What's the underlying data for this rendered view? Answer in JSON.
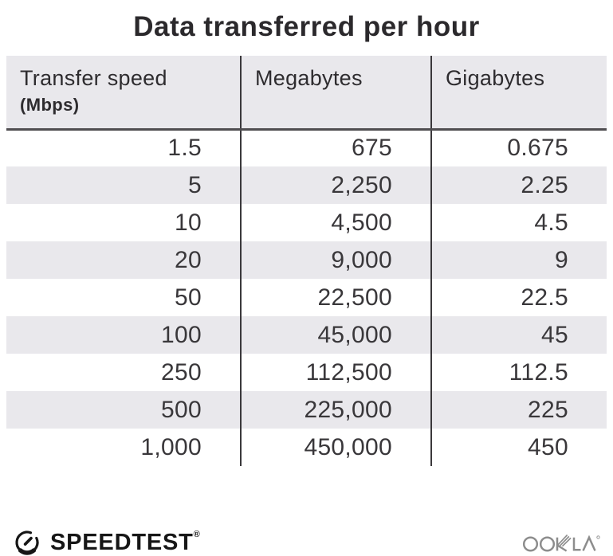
{
  "title": "Data transferred per hour",
  "table": {
    "columns": [
      {
        "label": "Transfer speed",
        "sublabel": "(Mbps)"
      },
      {
        "label": "Megabytes",
        "sublabel": ""
      },
      {
        "label": "Gigabytes",
        "sublabel": ""
      }
    ],
    "rows": [
      [
        "1.5",
        "675",
        "0.675"
      ],
      [
        "5",
        "2,250",
        "2.25"
      ],
      [
        "10",
        "4,500",
        "4.5"
      ],
      [
        "20",
        "9,000",
        "9"
      ],
      [
        "50",
        "22,500",
        "22.5"
      ],
      [
        "100",
        "45,000",
        "45"
      ],
      [
        "250",
        "112,500",
        "112.5"
      ],
      [
        "500",
        "225,000",
        "225"
      ],
      [
        "1,000",
        "450,000",
        "450"
      ]
    ]
  },
  "chart_data": {
    "type": "table",
    "title": "Data transferred per hour",
    "columns": [
      "Transfer speed (Mbps)",
      "Megabytes",
      "Gigabytes"
    ],
    "rows": [
      [
        1.5,
        675,
        0.675
      ],
      [
        5,
        2250,
        2.25
      ],
      [
        10,
        4500,
        4.5
      ],
      [
        20,
        9000,
        9
      ],
      [
        50,
        22500,
        22.5
      ],
      [
        100,
        45000,
        45
      ],
      [
        250,
        112500,
        112.5
      ],
      [
        500,
        225000,
        225
      ],
      [
        1000,
        450000,
        450
      ]
    ],
    "layout_hints": {
      "striped_rows": true,
      "value_alignment": "right",
      "column_dividers": true
    }
  },
  "footer": {
    "speedtest_label": "SPEEDTEST",
    "speedtest_trademark": "®",
    "ookla_label": "OOKLA"
  },
  "colors": {
    "stripe_bg": "#e9e8ec",
    "header_bg": "#e9e8ec",
    "divider": "#3a383b",
    "header_rule": "#4f4d50",
    "text_dark": "#2b292c",
    "speedtest_black": "#161616",
    "ookla_gray": "#8d8d8d"
  }
}
